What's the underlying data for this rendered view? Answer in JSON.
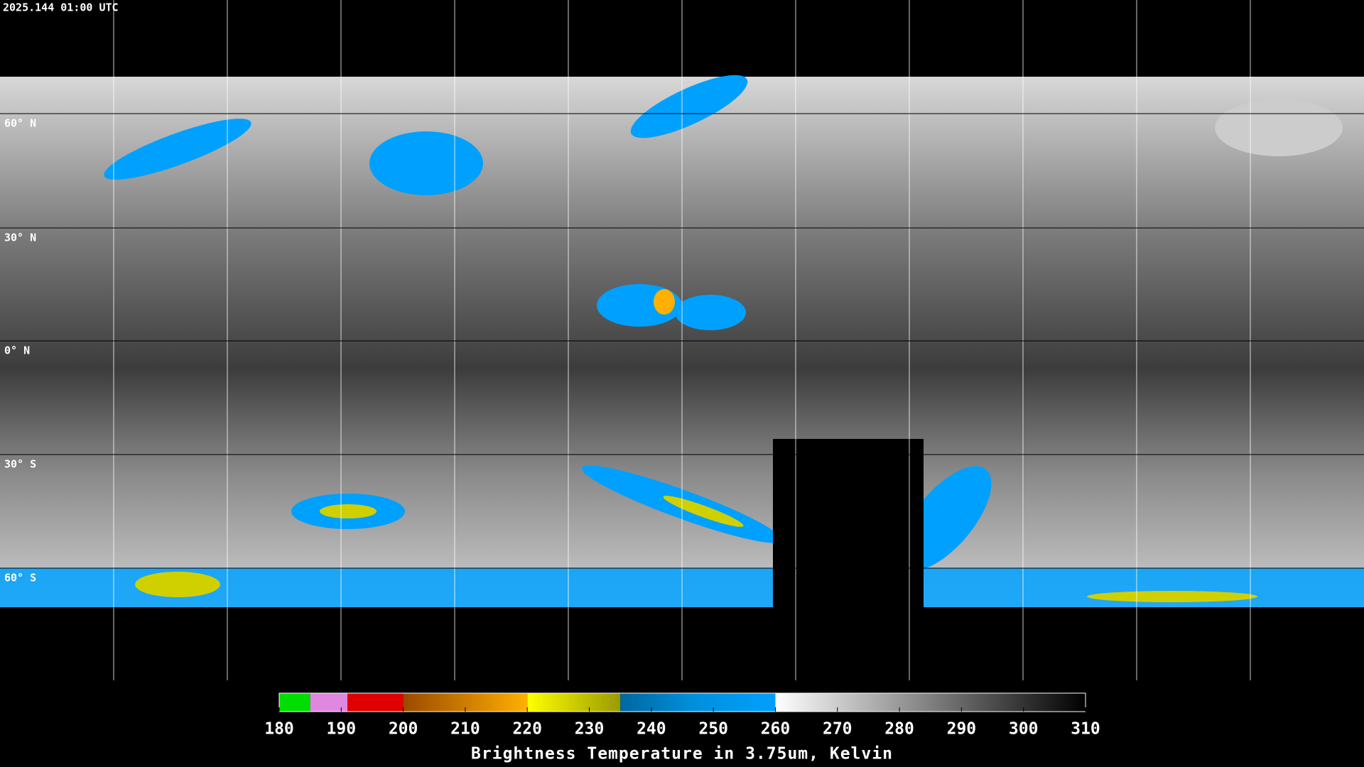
{
  "timestamp": "2025.144 01:00 UTC",
  "latitude_labels": [
    "60° N",
    "30° N",
    "0° N",
    "30° S",
    "60° S"
  ],
  "colorbar": {
    "title": "Brightness Temperature in 3.75um, Kelvin",
    "range": [
      180,
      310
    ],
    "ticks": [
      180,
      190,
      200,
      210,
      220,
      230,
      240,
      250,
      260,
      270,
      280,
      290,
      300,
      310
    ],
    "segments": [
      {
        "start": 180,
        "end": 185,
        "color_start": "#00dd00",
        "color_end": "#00dd00"
      },
      {
        "start": 185,
        "end": 191,
        "color_start": "#e088e0",
        "color_end": "#e088e0"
      },
      {
        "start": 191,
        "end": 200,
        "color_start": "#e00000",
        "color_end": "#e00000"
      },
      {
        "start": 200,
        "end": 220,
        "color_start": "#9a4a00",
        "color_end": "#ffb000"
      },
      {
        "start": 220,
        "end": 235,
        "color_start": "#ffff00",
        "color_end": "#9a9a00"
      },
      {
        "start": 235,
        "end": 247,
        "color_start": "#0068a0",
        "color_end": "#0090dd"
      },
      {
        "start": 247,
        "end": 260,
        "color_start": "#0090dd",
        "color_end": "#00a0ff"
      },
      {
        "start": 260,
        "end": 310,
        "color_start": "#ffffff",
        "color_end": "#000000"
      }
    ]
  }
}
